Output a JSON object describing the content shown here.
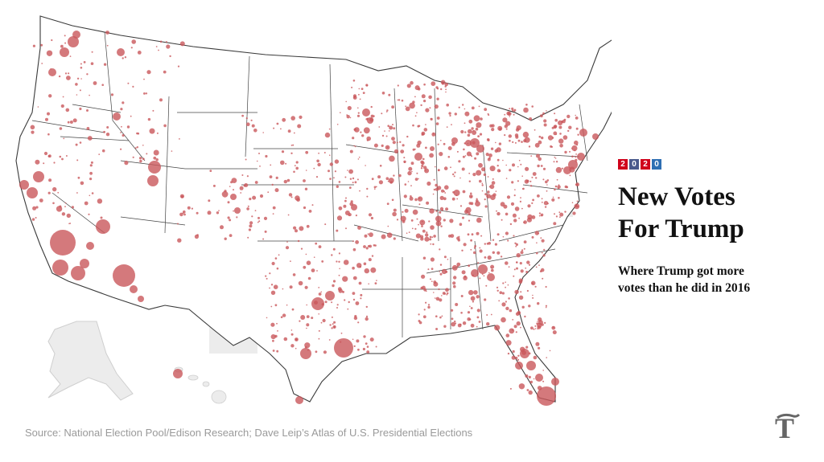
{
  "year_badge": [
    "2",
    "0",
    "2",
    "0"
  ],
  "badge_colors": [
    "#d0021b",
    "#4a5a8c",
    "#d0021b",
    "#2f6fb3"
  ],
  "headline_line1": "New Votes",
  "headline_line2": "For Trump",
  "subhead_line1": "Where Trump got more",
  "subhead_line2": "votes than he did in 2016",
  "source": "Source: National Election Pool/Edison Research; Dave Leip’s Atlas of U.S. Presidential Elections",
  "colors": {
    "bubble": "#c9585b",
    "land": "#ffffff",
    "shaded_county": "#ececec",
    "border": "#333333"
  },
  "logo_icon": "nyt-logo-icon",
  "map_regions": [
    "contiguous-us",
    "alaska",
    "hawaii"
  ]
}
